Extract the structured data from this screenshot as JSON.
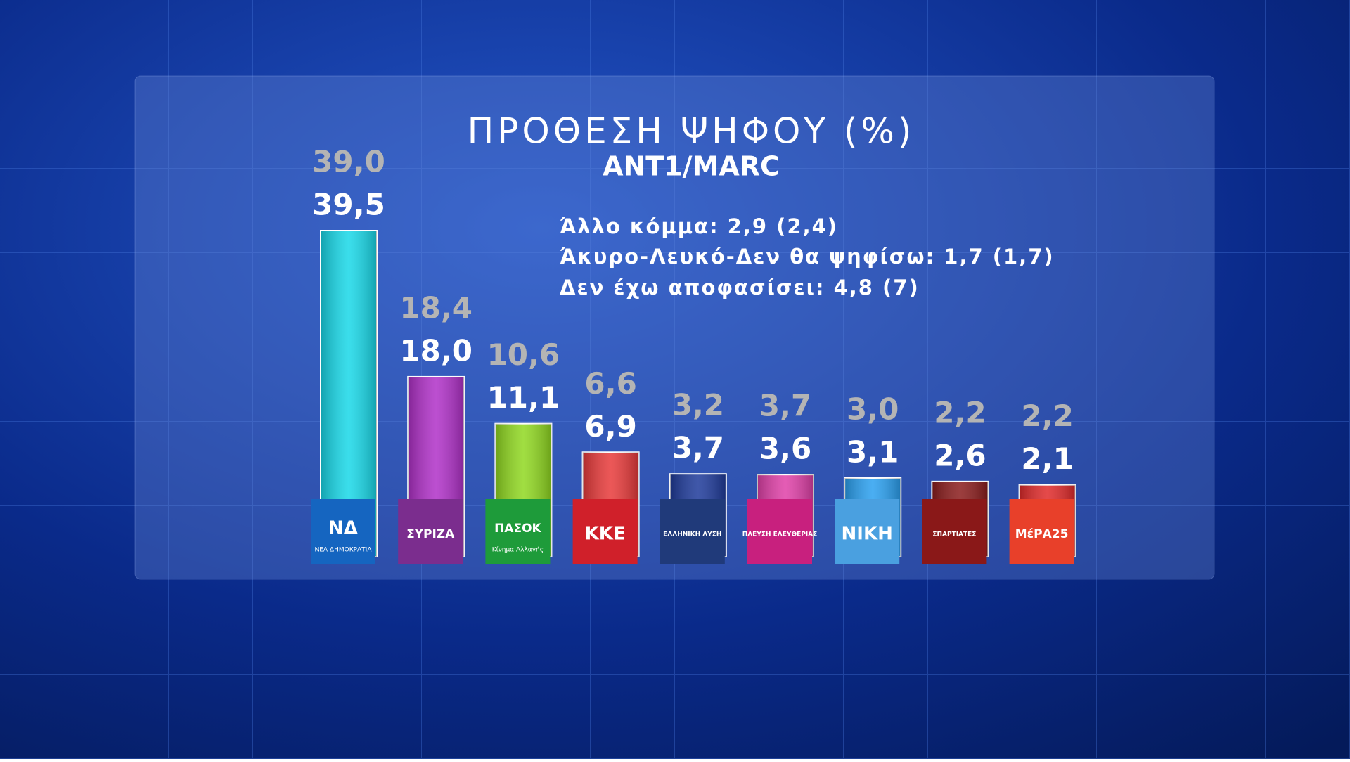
{
  "chart_data": {
    "type": "bar",
    "title": "ΠΡΟΘΕΣΗ ΨΗΦΟΥ (%)",
    "subtitle": "ANT1/MARC",
    "notes": [
      "Άλλο κόμμα: 2,9 (2,4)",
      "Άκυρο-Λευκό-Δεν θα ψηφίσω: 1,7 (1,7)",
      "Δεν έχω αποφασίσει: 4,8 (7)"
    ],
    "categories": [
      "ΝΔ",
      "ΣΥΡΙΖΑ",
      "ΠΑΣΟΚ",
      "ΚΚΕ",
      "ΕΛΛΗΝΙΚΗ ΛΥΣΗ",
      "ΠΛΕΥΣΗ ΕΛΕΥΘΕΡΙΑΣ",
      "ΝΙΚΗ",
      "ΣΠΑΡΤΙΑΤΕΣ",
      "ΜέΡΑ25"
    ],
    "logo_subtitles": [
      "ΝΕΑ ΔΗΜΟΚΡΑΤΙΑ",
      null,
      "Κίνημα Αλλαγής",
      null,
      null,
      null,
      null,
      null,
      null
    ],
    "logo_colors": [
      "#1565c0",
      "#7b2d8e",
      "#1e9b3a",
      "#d0202a",
      "#203a7a",
      "#c8207e",
      "#4aa0e0",
      "#8a1818",
      "#e8402a"
    ],
    "series": [
      {
        "color": "#b4b4b4",
        "values": [
          39.0,
          18.4,
          10.6,
          6.6,
          3.2,
          3.7,
          3.0,
          2.2,
          2.2
        ],
        "value_labels": [
          "39,0",
          "18,4",
          "10,6",
          "6,6",
          "3,2",
          "3,7",
          "3,0",
          "2,2",
          "2,2"
        ]
      },
      {
        "color": "#ffffff",
        "values": [
          39.5,
          18.0,
          11.1,
          6.9,
          3.7,
          3.6,
          3.1,
          2.6,
          2.1
        ],
        "value_labels": [
          "39,5",
          "18,0",
          "11,1",
          "6,9",
          "3,7",
          "3,6",
          "3,1",
          "2,6",
          "2,1"
        ],
        "colors": [
          "#18d8e8",
          "#b030c8",
          "#90d820",
          "#e83a3a",
          "#1e3a9a",
          "#e040a8",
          "#2aa0f0",
          "#8a1c1c",
          "#e02a2a"
        ]
      }
    ]
  }
}
